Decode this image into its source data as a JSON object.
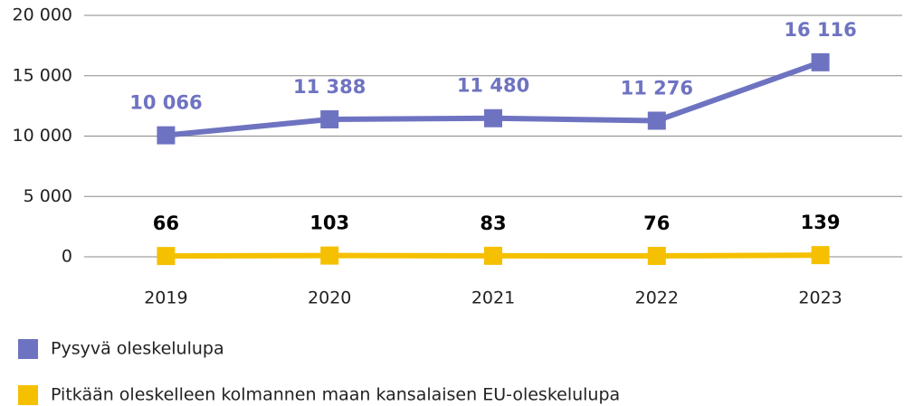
{
  "chart_data": {
    "type": "line",
    "categories": [
      "2019",
      "2020",
      "2021",
      "2022",
      "2023"
    ],
    "series": [
      {
        "name": "Pysyvä oleskelulupa",
        "color": "#6e73c1",
        "label_color": "#6e73c1",
        "values": [
          10066,
          11388,
          11480,
          11276,
          16116
        ],
        "value_labels": [
          "10 066",
          "11 388",
          "11 480",
          "11 276",
          "16 116"
        ]
      },
      {
        "name": "Pitkään oleskelleen kolmannen maan kansalaisen EU-oleskelulupa",
        "color": "#f5c000",
        "label_color": "#000000",
        "values": [
          66,
          103,
          83,
          76,
          139
        ],
        "value_labels": [
          "66",
          "103",
          "83",
          "76",
          "139"
        ]
      }
    ],
    "ylim": [
      0,
      20000
    ],
    "yticks": [
      0,
      {
        "value": 5000,
        "label": "5 000"
      },
      {
        "value": 10000,
        "label": "10 000"
      },
      {
        "value": 15000,
        "label": "15 000"
      },
      {
        "value": 20000,
        "label": "20 000"
      }
    ],
    "grid": true,
    "legend": "bottom-left"
  }
}
